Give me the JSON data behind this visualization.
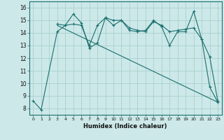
{
  "xlabel": "Humidex (Indice chaleur)",
  "bg_color": "#cde8e8",
  "line_color": "#1a7070",
  "grid_color": "#a8d0d0",
  "xlim": [
    -0.5,
    23.5
  ],
  "ylim": [
    7.5,
    16.5
  ],
  "xticks": [
    0,
    1,
    2,
    3,
    4,
    5,
    6,
    7,
    8,
    9,
    10,
    11,
    12,
    13,
    14,
    15,
    16,
    17,
    18,
    19,
    20,
    21,
    22,
    23
  ],
  "yticks": [
    8,
    9,
    10,
    11,
    12,
    13,
    14,
    15,
    16
  ],
  "line1_x": [
    0,
    1,
    3,
    4,
    5,
    6,
    7,
    8,
    9,
    10,
    11,
    12,
    13,
    14,
    15,
    16,
    17,
    18,
    19,
    20,
    21,
    22,
    23
  ],
  "line1_y": [
    8.6,
    7.9,
    14.1,
    14.6,
    15.5,
    14.8,
    12.8,
    13.2,
    15.2,
    14.6,
    15.0,
    14.2,
    14.1,
    14.2,
    15.0,
    14.5,
    13.0,
    14.1,
    14.1,
    15.7,
    13.5,
    12.1,
    8.6
  ],
  "line2_x": [
    3,
    4,
    5,
    6,
    7,
    8,
    9,
    10,
    11,
    12,
    13,
    14,
    15,
    16,
    17,
    18,
    19,
    20,
    21,
    22,
    23
  ],
  "line2_y": [
    14.7,
    14.6,
    14.7,
    14.6,
    13.0,
    14.6,
    15.2,
    15.0,
    15.0,
    14.4,
    14.2,
    14.1,
    14.9,
    14.6,
    14.1,
    14.2,
    14.3,
    14.4,
    13.5,
    9.7,
    8.5
  ],
  "line3_x": [
    3,
    23
  ],
  "line3_y": [
    14.6,
    8.5
  ]
}
